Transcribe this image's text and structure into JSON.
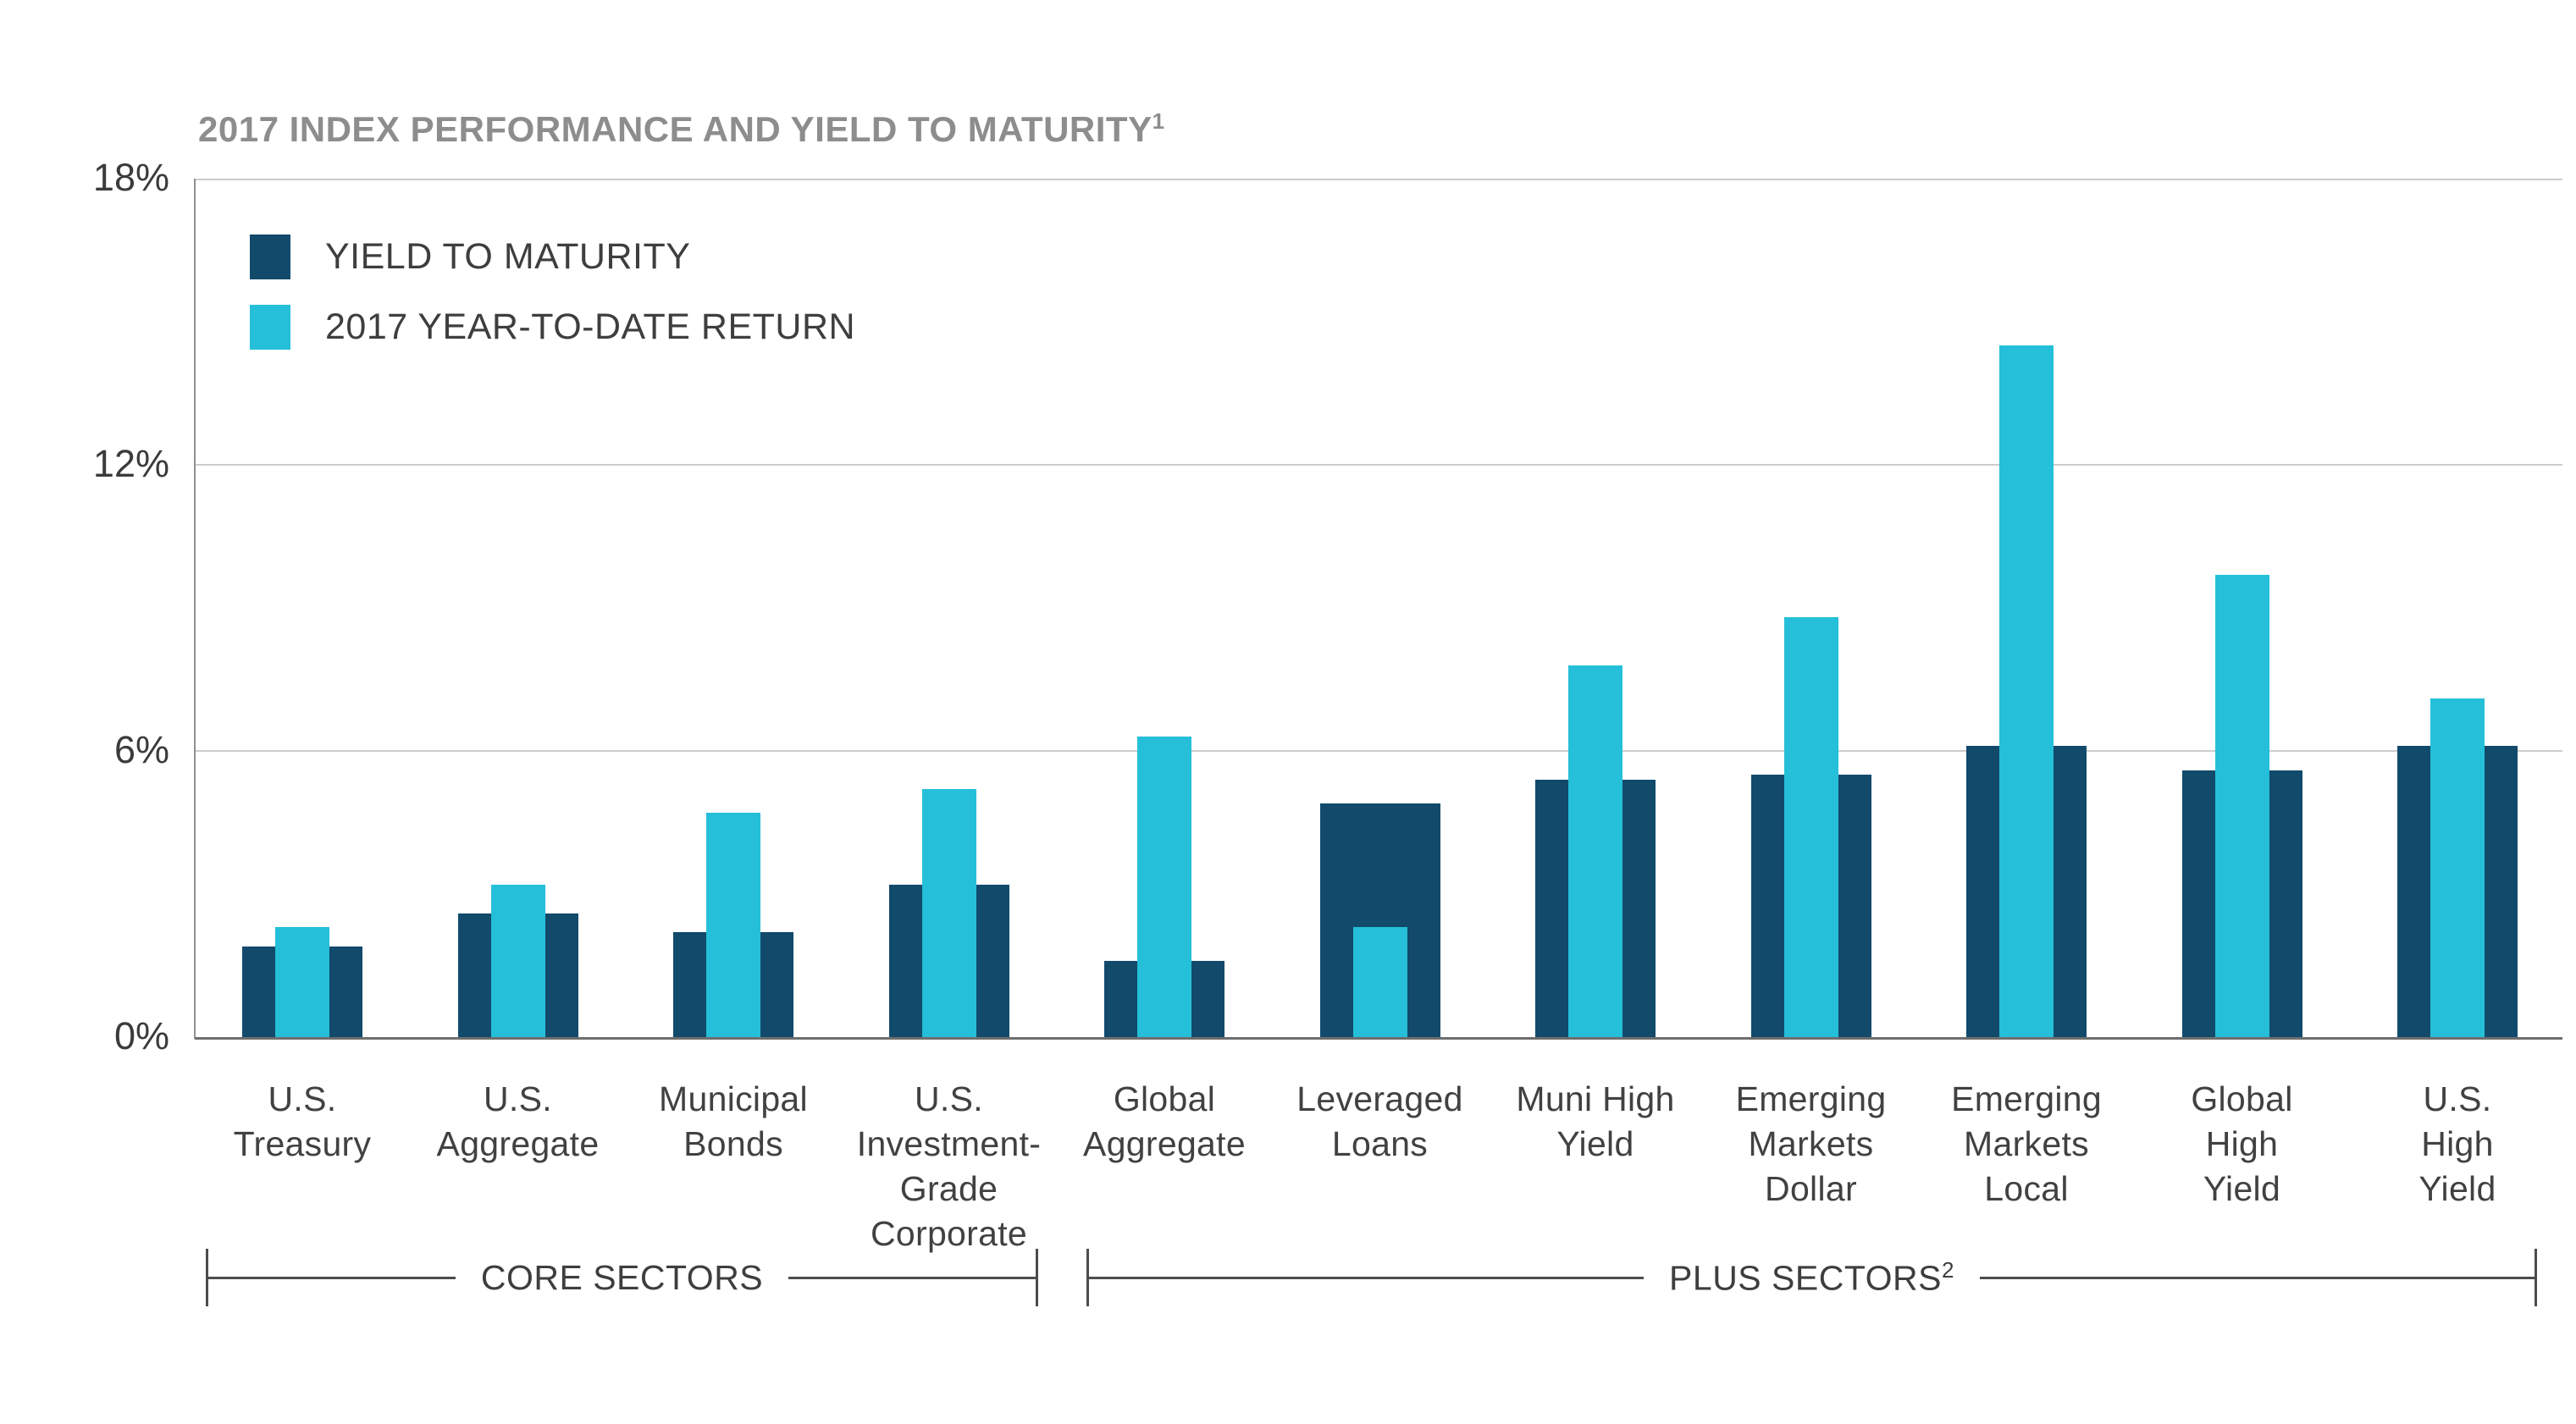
{
  "header": {
    "title": "2017 INDEX PERFORMANCE AND YIELD TO MATURITY",
    "title_sup": "1"
  },
  "legend": {
    "items": [
      {
        "label": "YIELD TO MATURITY",
        "color": "#114a6b"
      },
      {
        "label": "2017 YEAR-TO-DATE RETURN",
        "color": "#25bfd9"
      }
    ]
  },
  "y_axis": {
    "tick_labels": [
      "18%",
      "12%",
      "6%",
      "0%"
    ],
    "tick_values": [
      18,
      12,
      6,
      0
    ]
  },
  "sectors": {
    "core": {
      "label": "CORE SECTORS",
      "sup": ""
    },
    "plus": {
      "label": "PLUS SECTORS",
      "sup": "2"
    }
  },
  "chart_data": {
    "type": "bar",
    "title": "2017 INDEX PERFORMANCE AND YIELD TO MATURITY",
    "ylabel": "",
    "xlabel": "",
    "ylim": [
      0,
      18
    ],
    "yticks": [
      0,
      6,
      12,
      18
    ],
    "grid": true,
    "legend_position": "top-left",
    "categories": [
      {
        "label": "U.S. Treasury",
        "lines": [
          "U.S.",
          "Treasury"
        ],
        "sector": "CORE SECTORS"
      },
      {
        "label": "U.S. Aggregate",
        "lines": [
          "U.S.",
          "Aggregate"
        ],
        "sector": "CORE SECTORS"
      },
      {
        "label": "Municipal Bonds",
        "lines": [
          "Municipal",
          "Bonds"
        ],
        "sector": "CORE SECTORS"
      },
      {
        "label": "U.S. Investment-Grade Corporate",
        "lines": [
          "U.S.",
          "Investment-",
          "Grade",
          "Corporate"
        ],
        "sector": "CORE SECTORS"
      },
      {
        "label": "Global Aggregate",
        "lines": [
          "Global",
          "Aggregate"
        ],
        "sector": "PLUS SECTORS"
      },
      {
        "label": "Leveraged Loans",
        "lines": [
          "Leveraged",
          "Loans"
        ],
        "sector": "PLUS SECTORS"
      },
      {
        "label": "Muni High Yield",
        "lines": [
          "Muni High",
          "Yield"
        ],
        "sector": "PLUS SECTORS"
      },
      {
        "label": "Emerging Markets Dollar",
        "lines": [
          "Emerging",
          "Markets",
          "Dollar"
        ],
        "sector": "PLUS SECTORS"
      },
      {
        "label": "Emerging Markets Local",
        "lines": [
          "Emerging",
          "Markets",
          "Local"
        ],
        "sector": "PLUS SECTORS"
      },
      {
        "label": "Global High Yield",
        "lines": [
          "Global",
          "High",
          "Yield"
        ],
        "sector": "PLUS SECTORS"
      },
      {
        "label": "U.S. High Yield",
        "lines": [
          "U.S.",
          "High",
          "Yield"
        ],
        "sector": "PLUS SECTORS"
      }
    ],
    "series": [
      {
        "name": "YIELD TO MATURITY",
        "color": "#114a6b",
        "unit": "%",
        "values": [
          1.9,
          2.6,
          2.2,
          3.2,
          1.6,
          4.9,
          5.4,
          5.5,
          6.1,
          5.6,
          6.1
        ]
      },
      {
        "name": "2017 YEAR-TO-DATE RETURN",
        "color": "#25bfd9",
        "unit": "%",
        "values": [
          2.3,
          3.2,
          4.7,
          5.2,
          6.3,
          2.3,
          7.8,
          8.8,
          14.5,
          9.7,
          7.1
        ]
      }
    ]
  }
}
